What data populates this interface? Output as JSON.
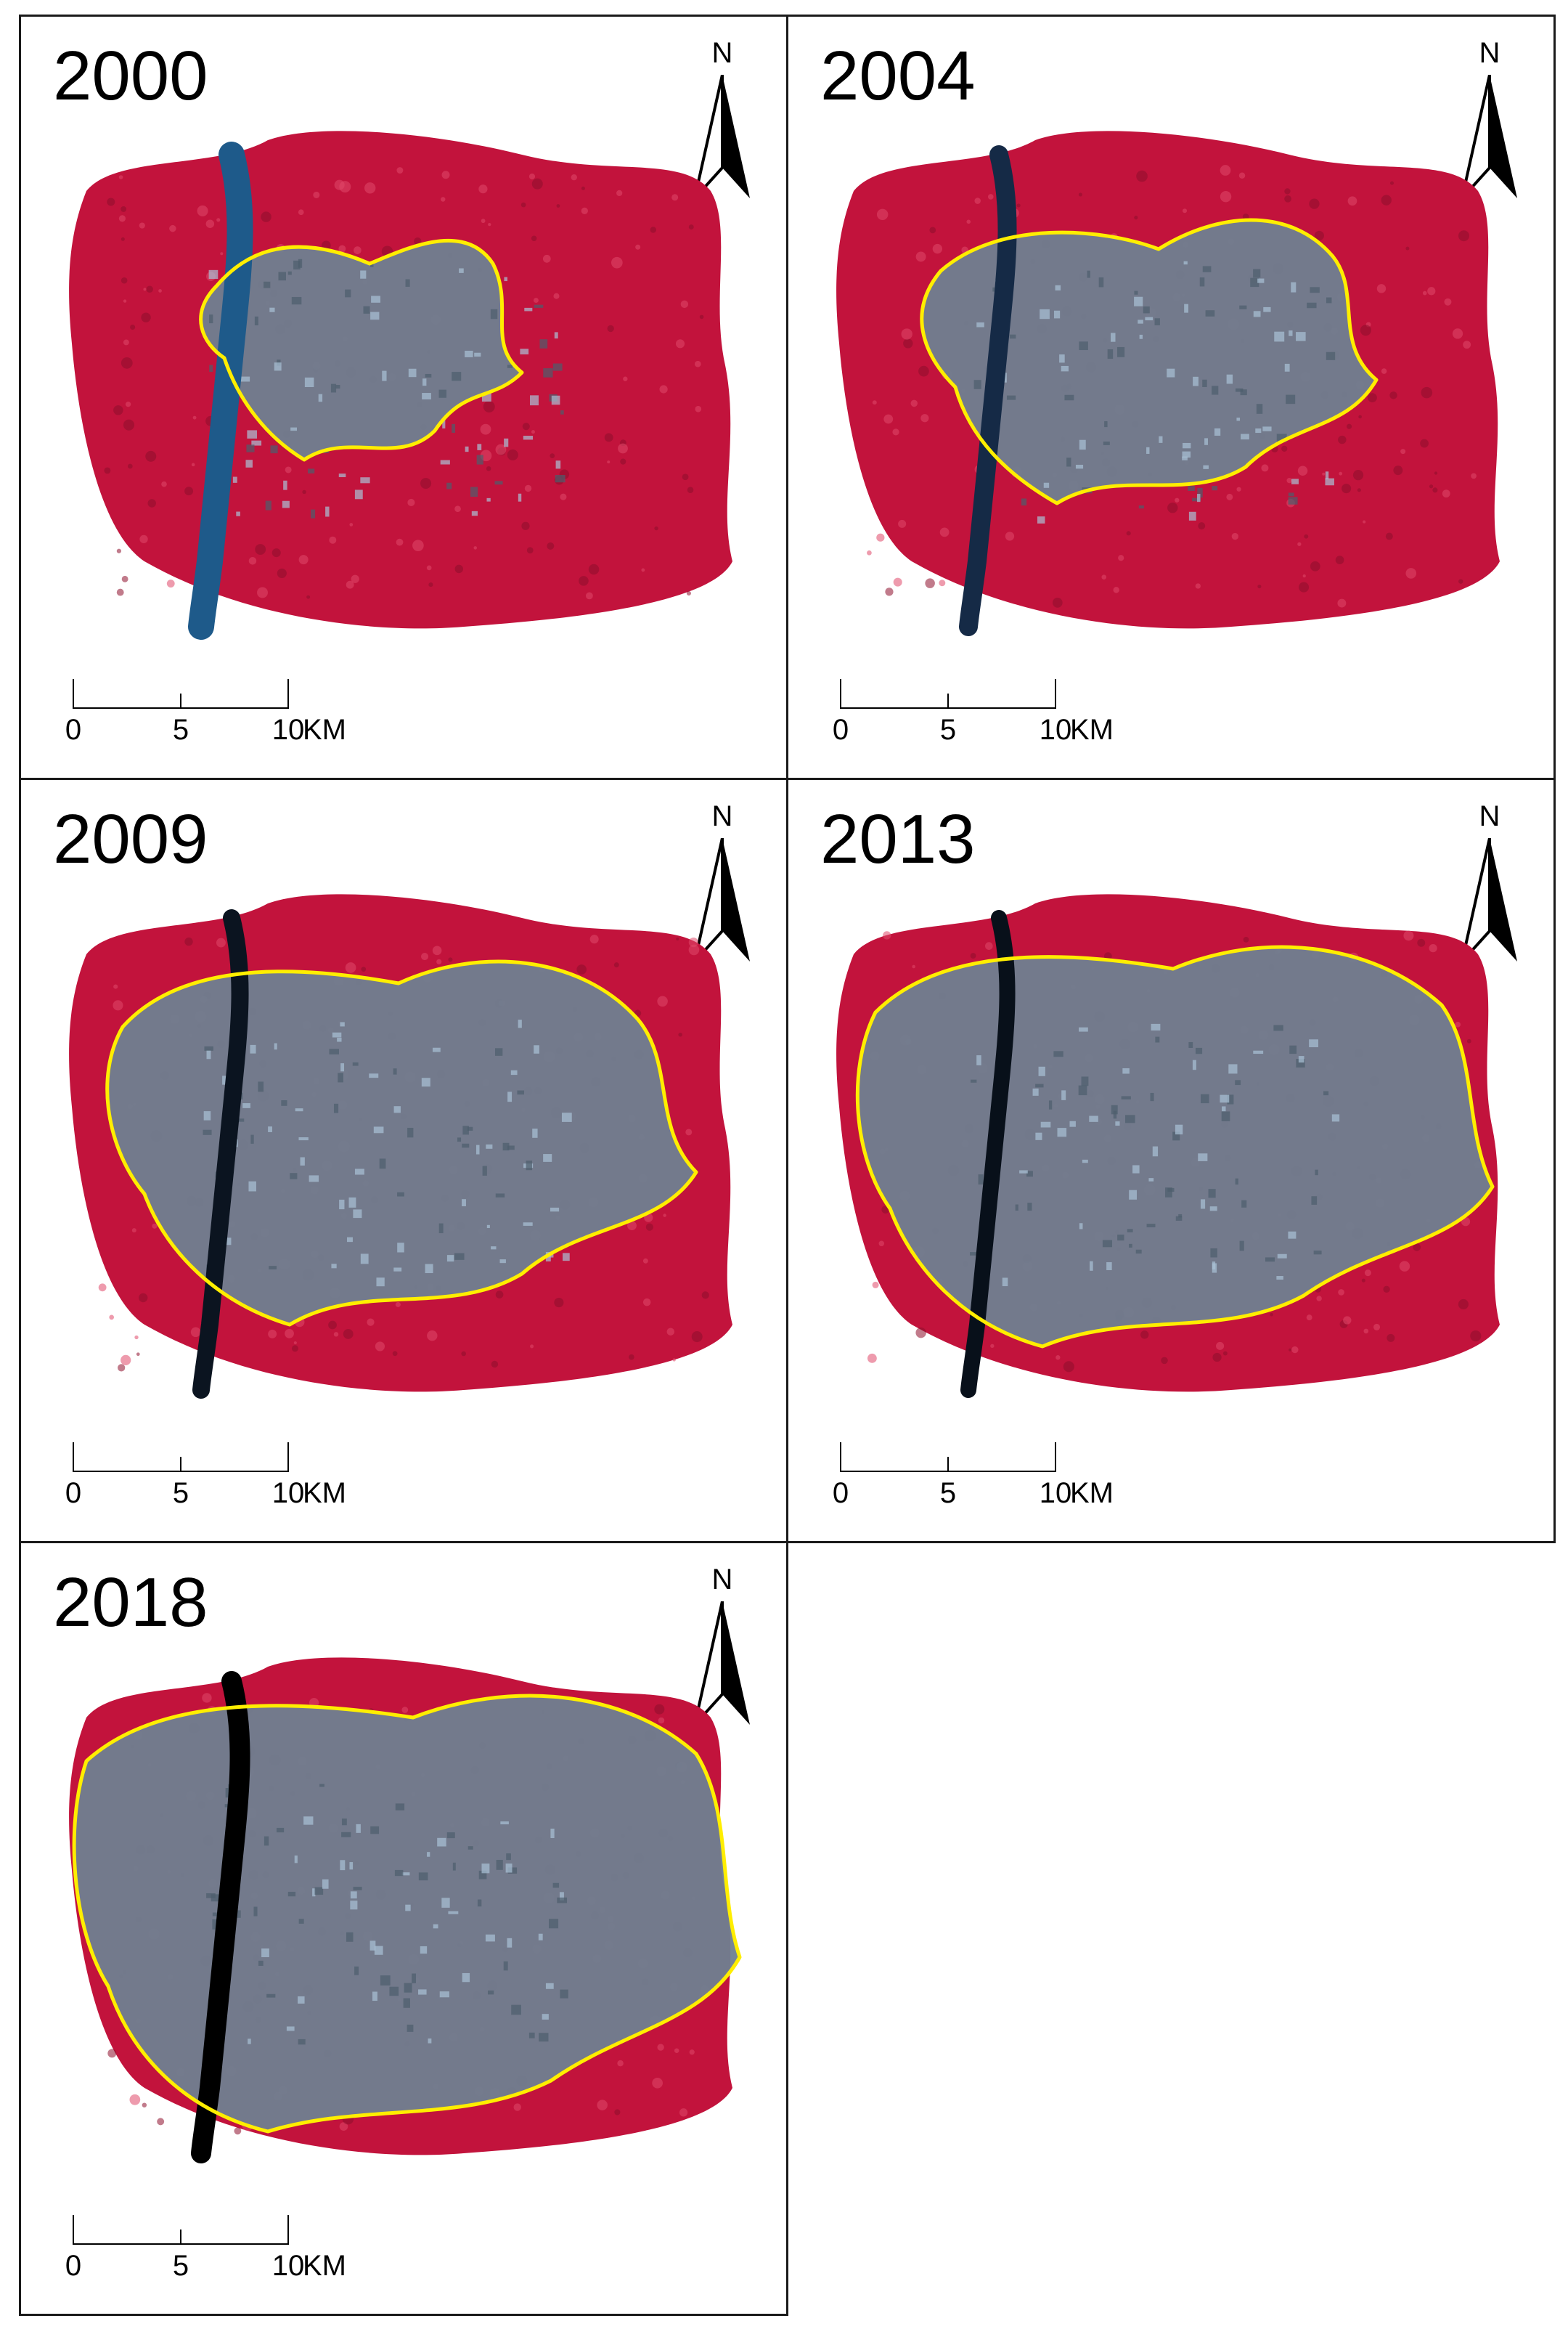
{
  "panels": [
    {
      "year": "2000"
    },
    {
      "year": "2004"
    },
    {
      "year": "2009"
    },
    {
      "year": "2013"
    },
    {
      "year": "2018"
    }
  ],
  "north_arrow": {
    "label": "N",
    "icon": "north-arrow-icon"
  },
  "scale_bar": {
    "ticks": [
      "0",
      "5",
      "10"
    ],
    "unit": "KM"
  },
  "legend_colors": {
    "vegetation": "#c2133c",
    "urban": "#6f8090",
    "river": "#1e5a8a",
    "boundary": "#ffee00"
  }
}
